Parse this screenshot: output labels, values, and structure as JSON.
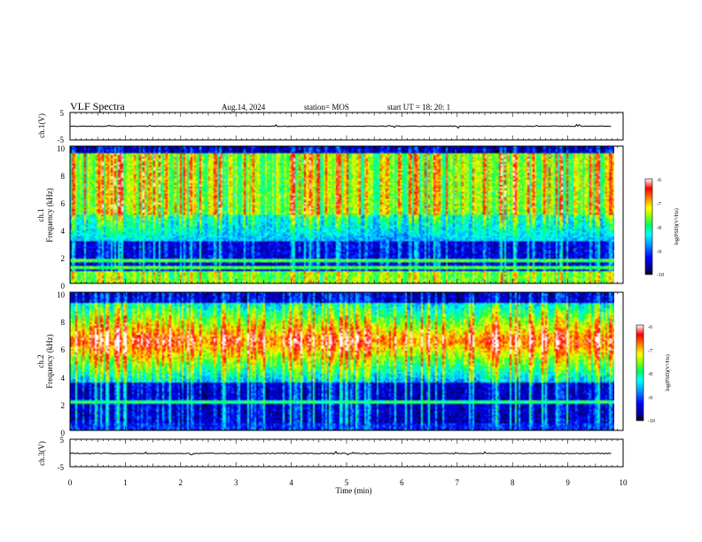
{
  "header": {
    "title": "VLF Spectra",
    "date": "Aug.14, 2024",
    "station": "station= MOS",
    "start": "start  UT =   18: 20: 1"
  },
  "chart_data": [
    {
      "type": "line",
      "id": "ch1-voltage",
      "ylabel": "ch.1(V)",
      "ylim": [
        -5,
        5
      ],
      "yticks": [
        "5",
        "-5"
      ],
      "xlim": [
        0,
        10
      ],
      "series": [
        {
          "values_description_free": true,
          "x": [
            0,
            9.8
          ],
          "y": [
            0,
            0
          ]
        }
      ]
    },
    {
      "type": "heatmap",
      "id": "ch1-spectrogram",
      "ylabel": "ch.1",
      "ylabel2": "Frequency (kHz)",
      "ylim": [
        0,
        10
      ],
      "yticks": [
        "0",
        "2",
        "4",
        "6",
        "8",
        "10"
      ],
      "xlim": [
        0,
        10
      ],
      "colorbar": {
        "label": "log(PSD)(V²/Hz)",
        "range": [
          -10,
          -6
        ],
        "ticks": [
          "-6",
          "-7",
          "-8",
          "-9",
          "-10"
        ]
      }
    },
    {
      "type": "heatmap",
      "id": "ch2-spectrogram",
      "ylabel": "ch.2",
      "ylabel2": "Frequency (kHz)",
      "ylim": [
        0,
        10
      ],
      "yticks": [
        "0",
        "2",
        "4",
        "6",
        "8",
        "10"
      ],
      "xlim": [
        0,
        10
      ],
      "colorbar": {
        "label": "log(PSD)(V²/Hz)",
        "range": [
          -10,
          -6
        ],
        "ticks": [
          "-6",
          "-7",
          "-8",
          "-9",
          "-10"
        ]
      }
    },
    {
      "type": "line",
      "id": "ch3-voltage",
      "ylabel": "ch.3(V)",
      "ylim": [
        -5,
        5
      ],
      "yticks": [
        "5",
        "-5"
      ],
      "xlim": [
        0,
        10
      ],
      "series": [
        {
          "x": [
            0,
            9.8
          ],
          "y": [
            0,
            0
          ]
        }
      ]
    }
  ],
  "xaxis": {
    "label": "Time  (min)",
    "ticks": [
      "0",
      "1",
      "2",
      "3",
      "4",
      "5",
      "6",
      "7",
      "8",
      "9",
      "10"
    ]
  },
  "colors": {
    "colormap": [
      "#00008b",
      "#0000ff",
      "#00a0ff",
      "#00ffff",
      "#00ff60",
      "#a0ff00",
      "#ffff00",
      "#ff8000",
      "#ff0000",
      "#ffffff"
    ]
  }
}
